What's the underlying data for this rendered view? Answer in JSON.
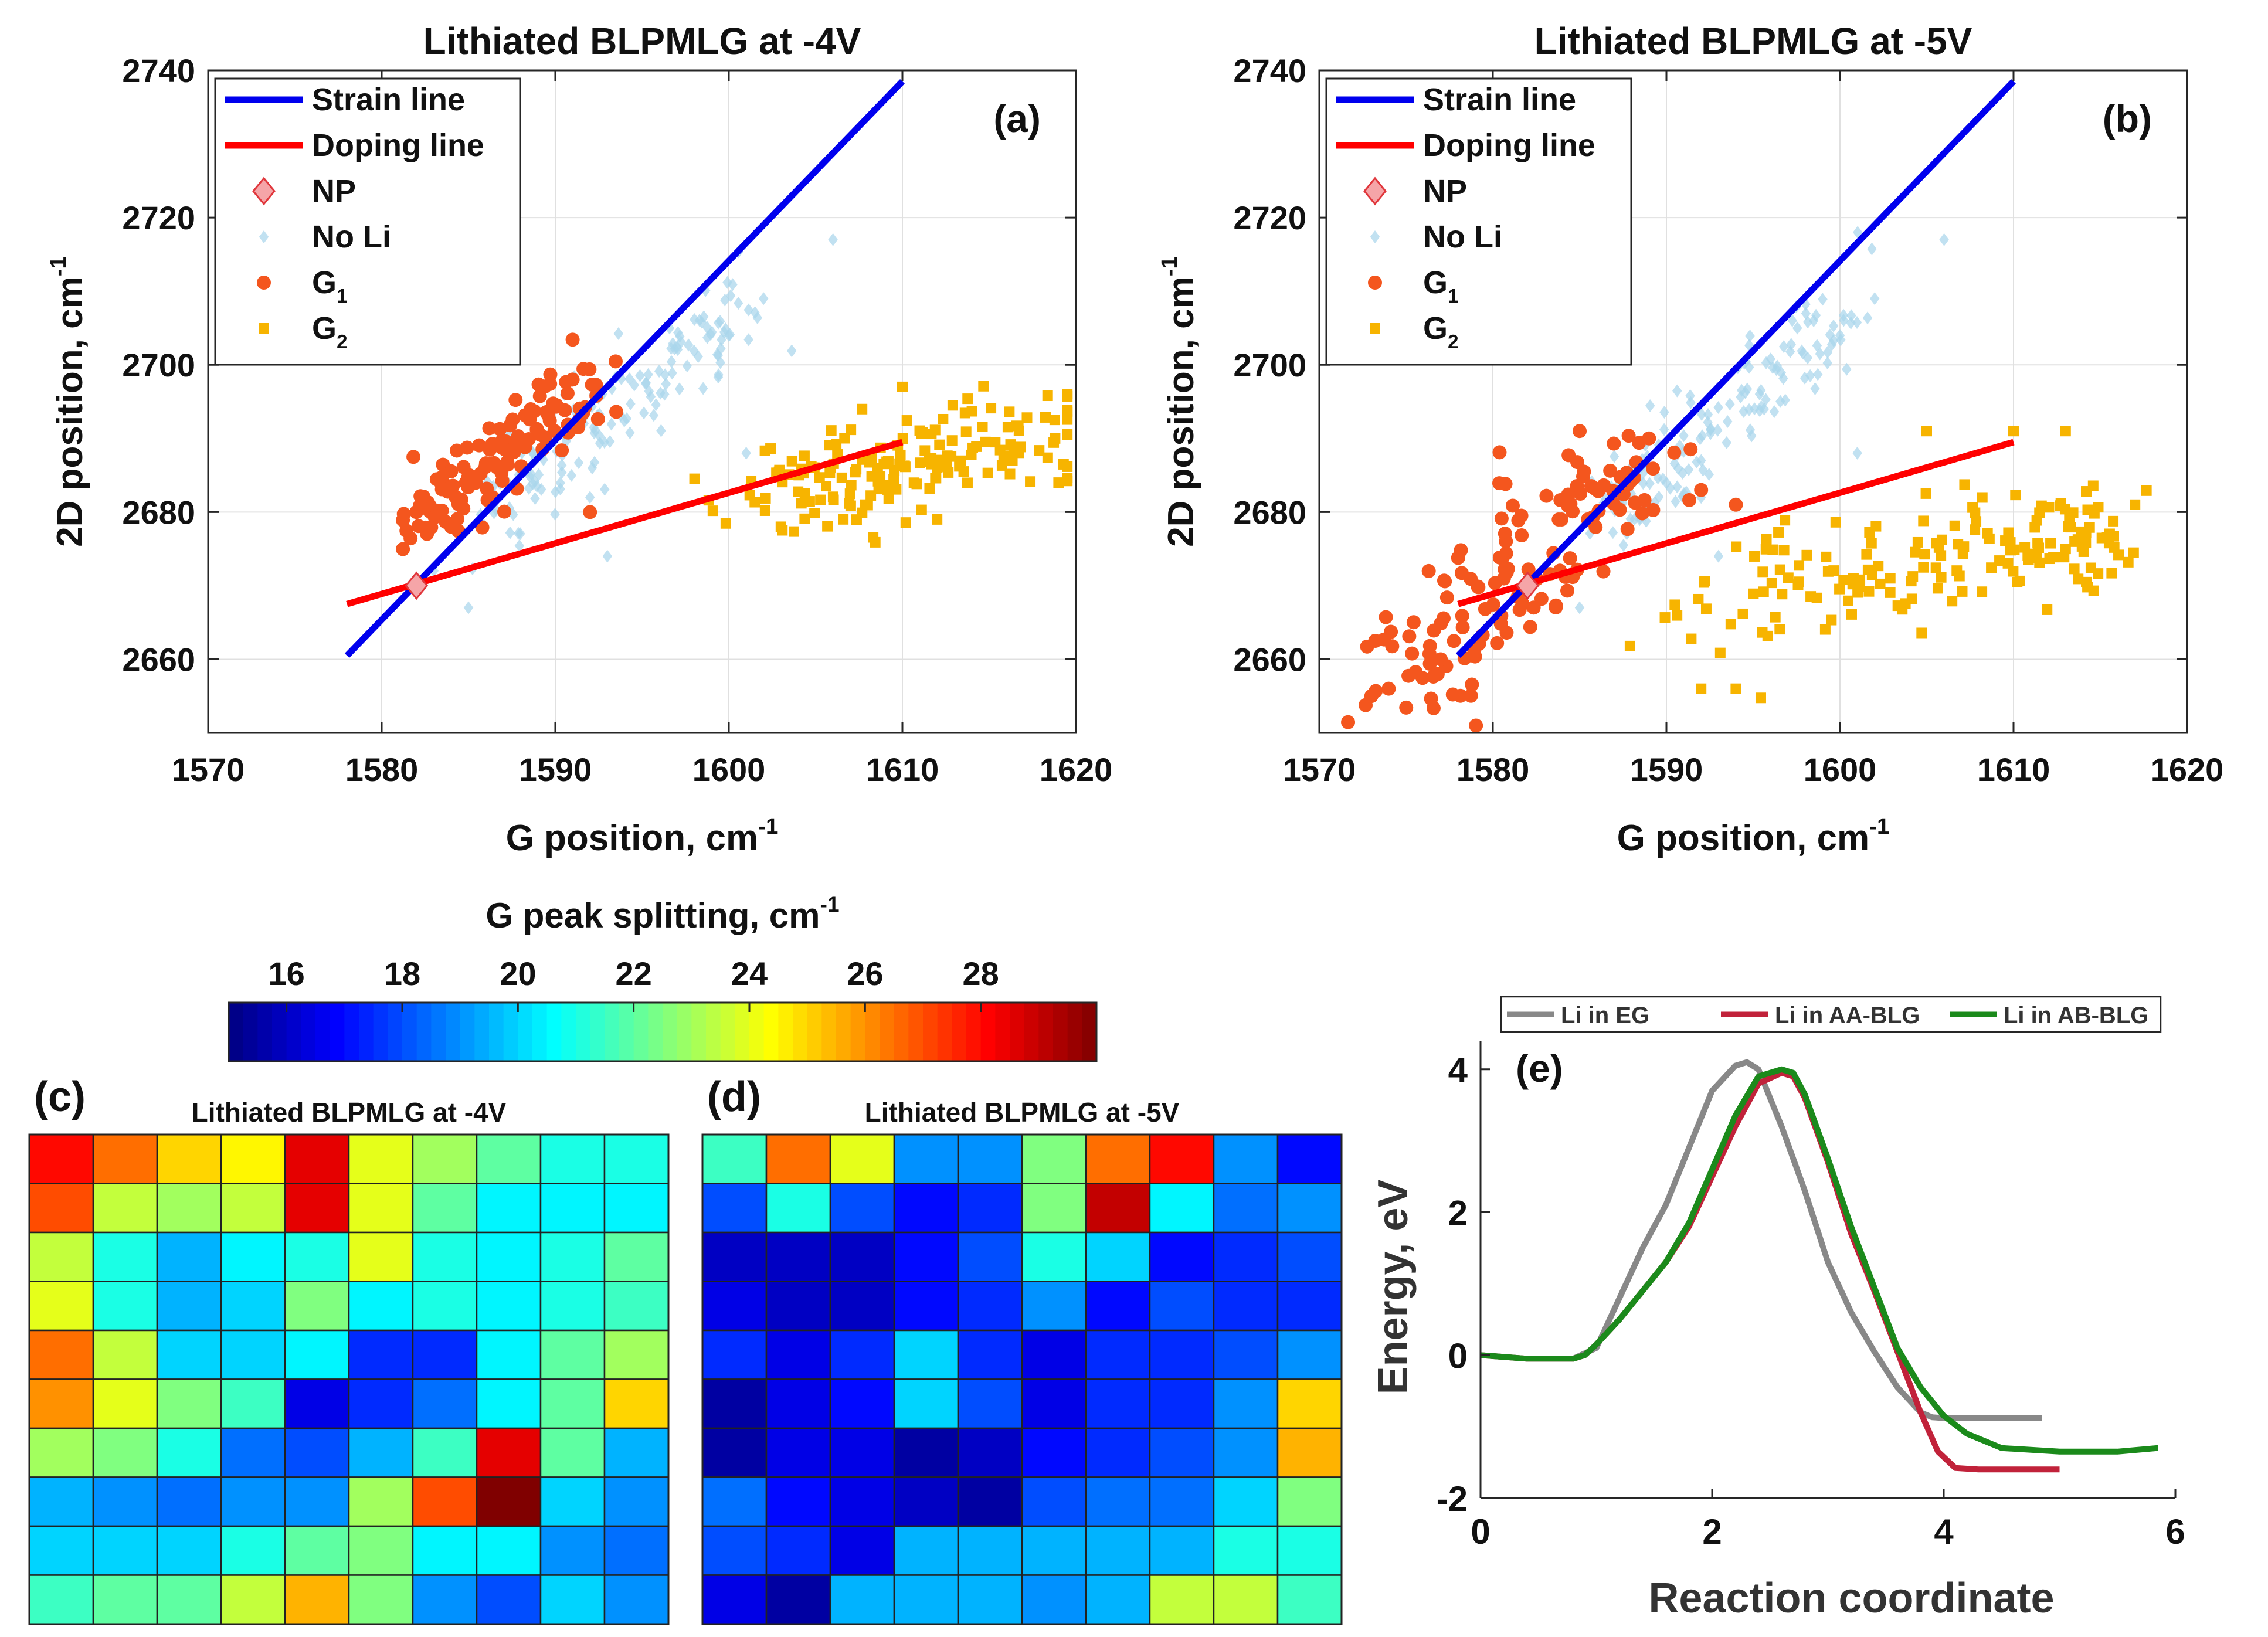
{
  "chart_data": [
    {
      "id": "a",
      "type": "scatter",
      "title": "Lithiated BLPMLG at -4V",
      "panel_label": "(a)",
      "xlabel": "G position, cm",
      "xlabel_sup": "-1",
      "ylabel": "2D position, cm",
      "ylabel_sup": "-1",
      "xlim": [
        1570,
        1620
      ],
      "ylim": [
        2650,
        2740
      ],
      "xticks": [
        1570,
        1580,
        1590,
        1600,
        1610,
        1620
      ],
      "yticks": [
        2660,
        2680,
        2700,
        2720,
        2740
      ],
      "legend_position": "top-left",
      "legend": [
        {
          "key": "strain",
          "label": "Strain line",
          "sub": "",
          "color": "#0000ee",
          "marker": "line"
        },
        {
          "key": "doping",
          "label": "Doping line",
          "sub": "",
          "color": "#ff0000",
          "marker": "line"
        },
        {
          "key": "np",
          "label": "NP",
          "sub": "",
          "color": "#f5a5a8",
          "marker": "diamond"
        },
        {
          "key": "noli",
          "label": "No Li",
          "sub": "",
          "color": "#a9d6ec",
          "marker": "smalldiamond"
        },
        {
          "key": "g1",
          "label": "G",
          "sub": "1",
          "color": "#f4561e",
          "marker": "circle"
        },
        {
          "key": "g2",
          "label": "G",
          "sub": "2",
          "color": "#f7b400",
          "marker": "square"
        }
      ],
      "lines": [
        {
          "name": "Strain line",
          "color": "#0000ee",
          "x": [
            1578,
            1610
          ],
          "y": [
            2660.5,
            2738.5
          ]
        },
        {
          "name": "Doping line",
          "color": "#ff0000",
          "x": [
            1578,
            1610
          ],
          "y": [
            2667.5,
            2689.5
          ]
        }
      ],
      "np_point": {
        "x": 1582,
        "y": 2670
      },
      "series": [
        {
          "name": "No Li",
          "color": "#a9d6ec",
          "marker": "smalldiamond",
          "cluster": {
            "n": 150,
            "x0": 1586,
            "x1": 1601,
            "y0": 2679,
            "y1": 2708,
            "sx": 0.8,
            "sy": 3.2
          },
          "extra": [
            [
              1585,
              2667
            ],
            [
              1601,
              2688
            ],
            [
              1606,
              2717
            ],
            [
              1600,
              2704
            ],
            [
              1602,
              2709
            ],
            [
              1593,
              2674
            ],
            [
              1592,
              2682
            ],
            [
              1583,
              2672
            ]
          ]
        },
        {
          "name": "G1",
          "color": "#f4561e",
          "marker": "circle",
          "cluster": {
            "n": 130,
            "x0": 1582,
            "x1": 1592,
            "y0": 2679,
            "y1": 2697,
            "sx": 0.9,
            "sy": 2.6
          },
          "extra": [
            [
              1582,
              2680
            ],
            [
              1592,
              2680
            ],
            [
              1591,
              2698
            ],
            [
              1584,
              2678
            ]
          ]
        },
        {
          "name": "G2",
          "color": "#f7b400",
          "marker": "square",
          "cluster": {
            "n": 170,
            "x0": 1603,
            "x1": 1619,
            "y0": 2679,
            "y1": 2697,
            "sx": 2.8,
            "sy": 3.2,
            "band": true
          },
          "extra": [
            [
              1603,
              2678
            ],
            [
              1619,
              2684
            ],
            [
              1610,
              2697
            ],
            [
              1612,
              2679
            ]
          ]
        }
      ]
    },
    {
      "id": "b",
      "type": "scatter",
      "title": "Lithiated BLPMLG at -5V",
      "panel_label": "(b)",
      "xlabel": "G position, cm",
      "xlabel_sup": "-1",
      "ylabel": "2D position, cm",
      "ylabel_sup": "-1",
      "xlim": [
        1570,
        1620
      ],
      "ylim": [
        2650,
        2740
      ],
      "xticks": [
        1570,
        1580,
        1590,
        1600,
        1610,
        1620
      ],
      "yticks": [
        2660,
        2680,
        2700,
        2720,
        2740
      ],
      "legend_position": "top-left",
      "legend": [
        {
          "key": "strain",
          "label": "Strain line",
          "sub": "",
          "color": "#0000ee",
          "marker": "line"
        },
        {
          "key": "doping",
          "label": "Doping line",
          "sub": "",
          "color": "#ff0000",
          "marker": "line"
        },
        {
          "key": "np",
          "label": "NP",
          "sub": "",
          "color": "#f5a5a8",
          "marker": "diamond"
        },
        {
          "key": "noli",
          "label": "No Li",
          "sub": "",
          "color": "#a9d6ec",
          "marker": "smalldiamond"
        },
        {
          "key": "g1",
          "label": "G",
          "sub": "1",
          "color": "#f4561e",
          "marker": "circle"
        },
        {
          "key": "g2",
          "label": "G",
          "sub": "2",
          "color": "#f7b400",
          "marker": "square"
        }
      ],
      "lines": [
        {
          "name": "Strain line",
          "color": "#0000ee",
          "x": [
            1578,
            1610
          ],
          "y": [
            2660.5,
            2738.5
          ]
        },
        {
          "name": "Doping line",
          "color": "#ff0000",
          "x": [
            1578,
            1610
          ],
          "y": [
            2667.5,
            2689.5
          ]
        }
      ],
      "np_point": {
        "x": 1582,
        "y": 2670
      },
      "series": [
        {
          "name": "No Li",
          "color": "#a9d6ec",
          "marker": "smalldiamond",
          "cluster": {
            "n": 150,
            "x0": 1586,
            "x1": 1601,
            "y0": 2679,
            "y1": 2708,
            "sx": 0.8,
            "sy": 3.2
          },
          "extra": [
            [
              1585,
              2667
            ],
            [
              1601,
              2688
            ],
            [
              1606,
              2717
            ],
            [
              1600,
              2704
            ],
            [
              1602,
              2709
            ],
            [
              1593,
              2674
            ],
            [
              1592,
              2682
            ]
          ]
        },
        {
          "name": "G1",
          "color": "#f4561e",
          "marker": "circle",
          "cluster": {
            "n": 140,
            "x0": 1574,
            "x1": 1589,
            "y0": 2656,
            "y1": 2688,
            "sx": 1.6,
            "sy": 4.5
          },
          "extra": [
            [
              1573,
              2655
            ],
            [
              1574,
              2656
            ],
            [
              1585,
              2691
            ],
            [
              1589,
              2690
            ],
            [
              1592,
              2683
            ],
            [
              1594,
              2681
            ],
            [
              1579,
              2662
            ],
            [
              1577,
              2660
            ]
          ]
        },
        {
          "name": "G2",
          "color": "#f7b400",
          "marker": "square",
          "cluster": {
            "n": 170,
            "x0": 1593,
            "x1": 1617,
            "y0": 2662,
            "y1": 2687,
            "sx": 2.4,
            "sy": 3.8,
            "band": true
          },
          "extra": [
            [
              1592,
              2656
            ],
            [
              1594,
              2656
            ],
            [
              1617,
              2681
            ],
            [
              1613,
              2691
            ],
            [
              1613,
              2675
            ],
            [
              1610,
              2691
            ],
            [
              1605,
              2691
            ]
          ]
        }
      ]
    },
    {
      "id": "c",
      "type": "heatmap",
      "title": "Lithiated BLPMLG at -4V",
      "panel_label": "(c)",
      "vmin": 15,
      "vmax": 30,
      "values": [
        [
          28.0,
          26.5,
          25.0,
          24.5,
          28.5,
          24.0,
          23.0,
          22.0,
          21.0,
          21.0
        ],
        [
          27.0,
          23.5,
          23.0,
          23.5,
          28.5,
          24.0,
          22.0,
          20.5,
          20.5,
          20.5
        ],
        [
          23.5,
          21.0,
          19.5,
          20.5,
          21.0,
          24.0,
          21.0,
          20.5,
          21.0,
          22.0
        ],
        [
          24.0,
          21.0,
          19.5,
          20.0,
          22.5,
          20.5,
          21.0,
          20.5,
          21.0,
          21.5
        ],
        [
          26.5,
          23.5,
          20.0,
          20.0,
          20.5,
          17.5,
          17.5,
          20.5,
          22.0,
          23.0
        ],
        [
          26.0,
          24.0,
          22.5,
          21.5,
          16.5,
          17.5,
          18.5,
          20.5,
          22.0,
          25.0
        ],
        [
          23.0,
          22.5,
          21.0,
          18.5,
          18.0,
          19.5,
          21.5,
          28.5,
          22.0,
          19.5
        ],
        [
          19.5,
          19.0,
          18.5,
          19.0,
          19.0,
          23.0,
          27.0,
          30.0,
          20.0,
          19.0
        ],
        [
          20.0,
          20.0,
          20.0,
          21.0,
          22.0,
          22.5,
          20.5,
          20.5,
          19.0,
          18.5
        ],
        [
          21.5,
          22.0,
          22.0,
          23.5,
          25.5,
          22.5,
          19.0,
          18.0,
          20.0,
          19.0
        ]
      ]
    },
    {
      "id": "d",
      "type": "heatmap",
      "title": "Lithiated BLPMLG at -5V",
      "panel_label": "(d)",
      "vmin": 15,
      "vmax": 30,
      "values": [
        [
          21.5,
          26.5,
          24.0,
          19.0,
          19.0,
          22.5,
          26.5,
          28.0,
          19.0,
          17.0
        ],
        [
          18.0,
          21.0,
          18.0,
          17.0,
          17.5,
          22.5,
          29.0,
          20.5,
          18.5,
          19.0
        ],
        [
          16.0,
          16.0,
          16.0,
          17.0,
          18.0,
          21.0,
          20.0,
          17.0,
          17.5,
          18.0
        ],
        [
          16.5,
          16.0,
          16.0,
          17.0,
          17.5,
          19.0,
          17.0,
          18.0,
          17.5,
          17.5
        ],
        [
          17.5,
          16.5,
          17.5,
          20.0,
          17.5,
          16.5,
          17.5,
          17.5,
          18.0,
          19.0
        ],
        [
          15.5,
          16.5,
          17.0,
          20.0,
          18.0,
          16.5,
          17.5,
          17.5,
          19.0,
          25.0
        ],
        [
          15.5,
          16.5,
          16.5,
          15.5,
          16.0,
          17.0,
          17.5,
          18.0,
          19.0,
          25.5
        ],
        [
          18.5,
          17.0,
          16.5,
          16.0,
          15.5,
          18.0,
          18.5,
          18.5,
          20.0,
          22.5
        ],
        [
          18.0,
          17.5,
          16.5,
          19.5,
          19.5,
          19.5,
          19.5,
          19.5,
          21.0,
          21.0
        ],
        [
          16.5,
          15.5,
          19.5,
          19.5,
          19.5,
          19.0,
          19.5,
          23.5,
          23.5,
          21.5
        ]
      ]
    },
    {
      "id": "e",
      "type": "line",
      "panel_label": "(e)",
      "xlabel": "Reaction coordinate",
      "ylabel": "Energy, eV",
      "xlim": [
        0,
        6
      ],
      "ylim": [
        -2,
        4.4
      ],
      "xticks": [
        0,
        2,
        4,
        6
      ],
      "yticks": [
        -2,
        0,
        2,
        4
      ],
      "legend_position": "top",
      "series": [
        {
          "name": "Li in EG",
          "color": "#888888",
          "x": [
            0,
            0.4,
            0.8,
            1.0,
            1.2,
            1.4,
            1.6,
            1.8,
            2.0,
            2.2,
            2.3,
            2.4,
            2.6,
            2.8,
            3.0,
            3.2,
            3.4,
            3.6,
            3.8,
            3.9,
            4.0,
            4.2,
            4.5,
            4.85
          ],
          "y": [
            0,
            -0.05,
            -0.05,
            0.1,
            0.8,
            1.5,
            2.1,
            2.9,
            3.7,
            4.05,
            4.1,
            4.0,
            3.2,
            2.3,
            1.3,
            0.6,
            0.05,
            -0.45,
            -0.8,
            -0.87,
            -0.88,
            -0.88,
            -0.88,
            -0.88
          ]
        },
        {
          "name": "Li in AA-BLG",
          "color": "#c1223a",
          "x": [
            0,
            0.4,
            0.8,
            0.9,
            1.0,
            1.2,
            1.4,
            1.6,
            1.8,
            2.0,
            2.2,
            2.4,
            2.6,
            2.7,
            2.8,
            3.0,
            3.2,
            3.4,
            3.6,
            3.8,
            3.95,
            4.1,
            4.3,
            4.6,
            5.0
          ],
          "y": [
            0,
            -0.05,
            -0.05,
            0,
            0.15,
            0.5,
            0.9,
            1.3,
            1.8,
            2.5,
            3.2,
            3.8,
            3.95,
            3.9,
            3.6,
            2.7,
            1.7,
            0.9,
            0.05,
            -0.8,
            -1.35,
            -1.58,
            -1.6,
            -1.6,
            -1.6
          ]
        },
        {
          "name": "Li in AB-BLG",
          "color": "#1b8a1b",
          "x": [
            0,
            0.4,
            0.8,
            0.9,
            1.0,
            1.2,
            1.4,
            1.6,
            1.8,
            2.0,
            2.2,
            2.4,
            2.6,
            2.7,
            2.8,
            3.0,
            3.2,
            3.4,
            3.6,
            3.8,
            4.0,
            4.2,
            4.5,
            5.0,
            5.5,
            5.85
          ],
          "y": [
            0,
            -0.05,
            -0.05,
            0,
            0.15,
            0.5,
            0.9,
            1.3,
            1.85,
            2.6,
            3.35,
            3.9,
            4.0,
            3.95,
            3.65,
            2.75,
            1.8,
            0.95,
            0.1,
            -0.45,
            -0.85,
            -1.1,
            -1.3,
            -1.35,
            -1.35,
            -1.3
          ]
        }
      ]
    }
  ],
  "colorbar": {
    "title": "G peak splitting, cm",
    "title_sup": "-1",
    "vmin": 15,
    "vmax": 30,
    "ticks": [
      16,
      18,
      20,
      22,
      24,
      26,
      28
    ]
  },
  "colors": {
    "axis": "#262626",
    "grid": "#e0e0e0"
  }
}
